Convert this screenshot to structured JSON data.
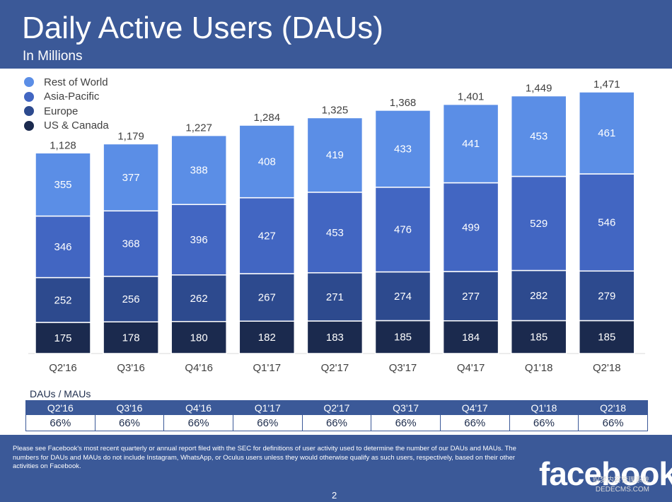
{
  "header": {
    "title": "Daily Active Users (DAUs)",
    "subtitle": "In Millions"
  },
  "colors": {
    "header_bg": "#3b5998",
    "rest_of_world": "#5b8ee6",
    "asia_pacific": "#4266c2",
    "europe": "#2d4a8e",
    "us_canada": "#1b2a4e"
  },
  "chart_data": {
    "type": "bar",
    "stacked": true,
    "title": "Daily Active Users (DAUs)",
    "subtitle": "In Millions",
    "categories": [
      "Q2'16",
      "Q3'16",
      "Q4'16",
      "Q1'17",
      "Q2'17",
      "Q3'17",
      "Q4'17",
      "Q1'18",
      "Q2'18"
    ],
    "series": [
      {
        "name": "US & Canada",
        "color": "#1b2a4e",
        "values": [
          175,
          178,
          180,
          182,
          183,
          185,
          184,
          185,
          185
        ]
      },
      {
        "name": "Europe",
        "color": "#2d4a8e",
        "values": [
          252,
          256,
          262,
          267,
          271,
          274,
          277,
          282,
          279
        ]
      },
      {
        "name": "Asia-Pacific",
        "color": "#4266c2",
        "values": [
          346,
          368,
          396,
          427,
          453,
          476,
          499,
          529,
          546
        ]
      },
      {
        "name": "Rest of World",
        "color": "#5b8ee6",
        "values": [
          355,
          377,
          388,
          408,
          419,
          433,
          441,
          453,
          461
        ]
      }
    ],
    "totals": [
      "1,128",
      "1,179",
      "1,227",
      "1,284",
      "1,325",
      "1,368",
      "1,401",
      "1,449",
      "1,471"
    ],
    "legend": [
      {
        "name": "Rest of World",
        "color": "#5b8ee6"
      },
      {
        "name": "Asia-Pacific",
        "color": "#4266c2"
      },
      {
        "name": "Europe",
        "color": "#2d4a8e"
      },
      {
        "name": "US & Canada",
        "color": "#1b2a4e"
      }
    ],
    "legend_position": "top-left",
    "ylim": [
      0,
      1500
    ],
    "grid": false
  },
  "ratio": {
    "title": "DAUs / MAUs",
    "quarters": [
      "Q2'16",
      "Q3'16",
      "Q4'16",
      "Q1'17",
      "Q2'17",
      "Q3'17",
      "Q4'17",
      "Q1'18",
      "Q2'18"
    ],
    "values": [
      "66%",
      "66%",
      "66%",
      "66%",
      "66%",
      "66%",
      "66%",
      "66%",
      "66%"
    ]
  },
  "footer": {
    "note": "Please see Facebook's most recent quarterly or annual report filed with the SEC for definitions of user activity used to determine the number of our DAUs and MAUs. The numbers for DAUs and MAUs do not include Instagram, WhatsApp, or Oculus users unless they would otherwise qualify as such users, respectively, based on their other activities on Facebook.",
    "logo": "facebook",
    "page_number": "2",
    "watermark_line1": "织梦内容管理系统",
    "watermark_line2": "DEDECMS.COM"
  }
}
